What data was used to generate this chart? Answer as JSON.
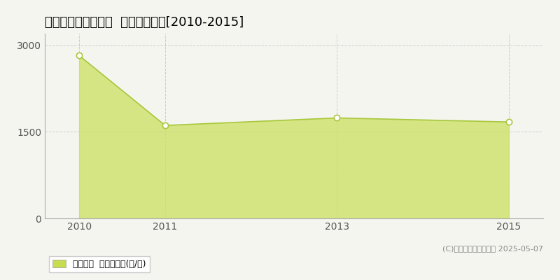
{
  "title": "東田川郡庄内町南野  農地価格推移[2010-2015]",
  "x_values": [
    2010,
    2011,
    2013,
    2015
  ],
  "y_values": [
    2820,
    1610,
    1740,
    1670
  ],
  "y_ticks": [
    0,
    1500,
    3000
  ],
  "x_ticks": [
    2010,
    2011,
    2013,
    2015
  ],
  "xlim": [
    2009.6,
    2015.4
  ],
  "ylim": [
    0,
    3200
  ],
  "line_color": "#a8c840",
  "fill_color": "#cce060",
  "fill_alpha": 0.75,
  "marker_color": "#ffffff",
  "marker_edge_color": "#a8c840",
  "marker_size": 6,
  "grid_color": "#cccccc",
  "background_color": "#f5f5f0",
  "legend_label": "農地価格  平均坪単価(円/坪)",
  "legend_color": "#c8dc50",
  "copyright_text": "(C)土地価格ドットコム 2025-05-07",
  "title_fontsize": 13,
  "axis_fontsize": 10,
  "legend_fontsize": 9,
  "copyright_fontsize": 8
}
